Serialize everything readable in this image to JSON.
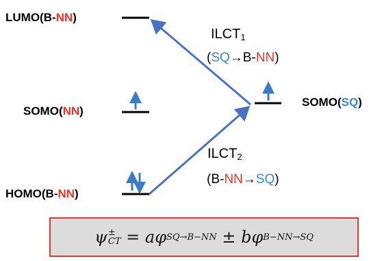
{
  "levels": {
    "lumo": {
      "prefix": "LUMO(B-",
      "accent": "NN",
      "suffix": ")"
    },
    "somo_nn": {
      "prefix": "SOMO(",
      "accent": "NN",
      "suffix": ")"
    },
    "homo": {
      "prefix": "HOMO(B-",
      "accent": "NN",
      "suffix": ")"
    },
    "somo_sq": {
      "prefix": "SOMO(",
      "accent": "SQ",
      "suffix": ")"
    }
  },
  "transitions": {
    "ilct1": {
      "label": "ILCT",
      "index": "1",
      "open": "(",
      "from": "SQ",
      "arrow": "→",
      "to_prefix": "B-",
      "to_accent": "NN",
      "close": ")"
    },
    "ilct2": {
      "label": "ILCT",
      "index": "2",
      "open": "(B-",
      "from_accent": "NN",
      "arrow": "→",
      "to": "SQ",
      "close": ")"
    }
  },
  "equation": {
    "psi": "ψ",
    "psi_sup": "±",
    "psi_sub": "CT",
    "equals": " = ",
    "a": "a",
    "phi1": "φ",
    "phi1_sub": "SQ→B−NN",
    "pm": " ± ",
    "b": "b",
    "phi2": "φ",
    "phi2_sub": "B−NN→SQ"
  },
  "colors": {
    "accent_red": "#e8352c",
    "accent_blue": "#3a86c8",
    "arrow_blue": "#4a72c4",
    "spin_blue": "#3a7cc4",
    "box_fill": "#dcdcdc",
    "box_border": "#e8352c"
  }
}
